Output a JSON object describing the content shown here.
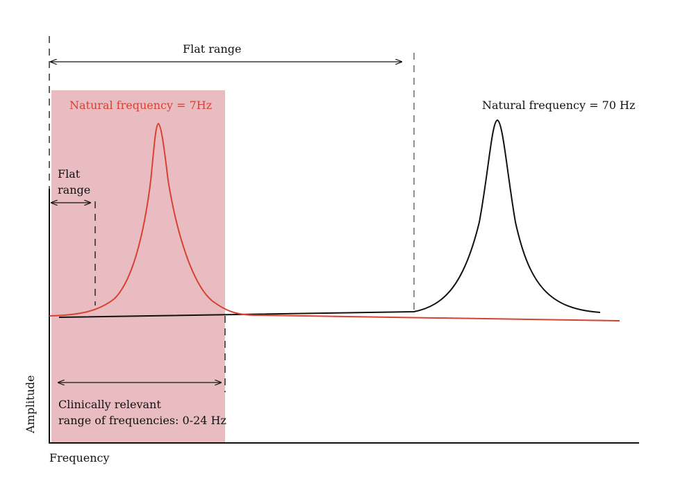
{
  "colors": {
    "band": "#e8bcc1",
    "red_curve": "#d8412f",
    "black_curve": "#111111",
    "red_text": "#d8412f",
    "text": "#111111"
  },
  "labels": {
    "flat_range_top": "Flat range",
    "natural_7": "Natural frequency = 7Hz",
    "natural_70": "Natural frequency = 70 Hz",
    "flat_small_line1": "Flat",
    "flat_small_line2": "range",
    "clinical_line1": "Clinically relevant",
    "clinical_line2": "range of frequencies: 0-24 Hz",
    "y_axis": "Amplitude",
    "x_axis": "Frequency"
  }
}
